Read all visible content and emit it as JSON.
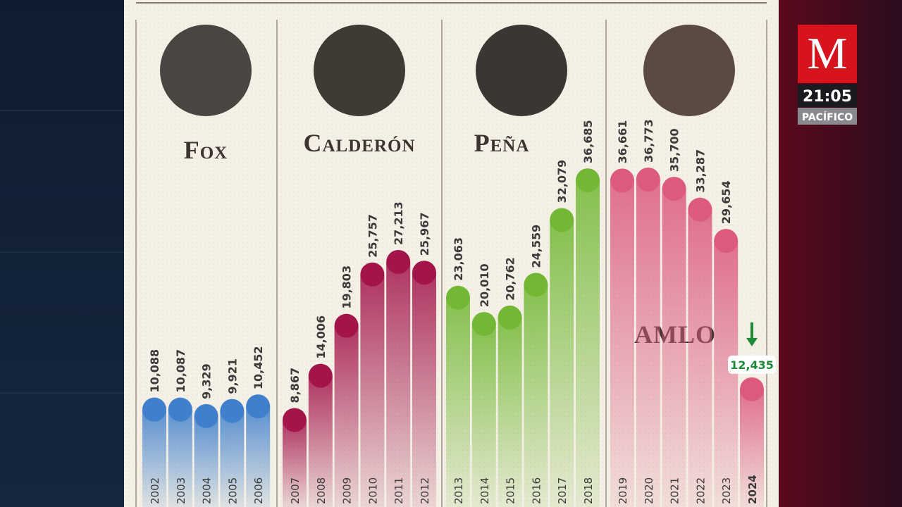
{
  "chart_data": {
    "type": "bar",
    "series": [
      {
        "name": "Fox",
        "color": "#3f7fcc",
        "categories": [
          "2002",
          "2003",
          "2004",
          "2005",
          "2006"
        ],
        "values": [
          10088,
          10087,
          9329,
          9921,
          10452
        ],
        "value_labels": [
          "10,088",
          "10,087",
          "9,329",
          "9,921",
          "10,452"
        ]
      },
      {
        "name": "Calderón",
        "color": "#a3144b",
        "categories": [
          "2007",
          "2008",
          "2009",
          "2010",
          "2011",
          "2012"
        ],
        "values": [
          8867,
          14006,
          19803,
          25757,
          27213,
          25967
        ],
        "value_labels": [
          "8,867",
          "14,006",
          "19,803",
          "25,757",
          "27,213",
          "25,967"
        ]
      },
      {
        "name": "Peña",
        "color": "#72b834",
        "categories": [
          "2013",
          "2014",
          "2015",
          "2016",
          "2017",
          "2018"
        ],
        "values": [
          23063,
          20010,
          20762,
          24559,
          32079,
          36685
        ],
        "value_labels": [
          "23,063",
          "20,010",
          "20,762",
          "24,559",
          "32,079",
          "36,685"
        ]
      },
      {
        "name": "AMLO",
        "color": "#dc5a7e",
        "categories": [
          "2019",
          "2020",
          "2021",
          "2022",
          "2023",
          "2024"
        ],
        "values": [
          36661,
          36773,
          35700,
          33287,
          29654,
          12435
        ],
        "value_labels": [
          "36,661",
          "36,773",
          "35,700",
          "33,287",
          "29,654",
          "12,435"
        ]
      }
    ]
  },
  "broadcaster": {
    "letter": "M",
    "time": "21:05",
    "zone": "PACÍFICO"
  }
}
